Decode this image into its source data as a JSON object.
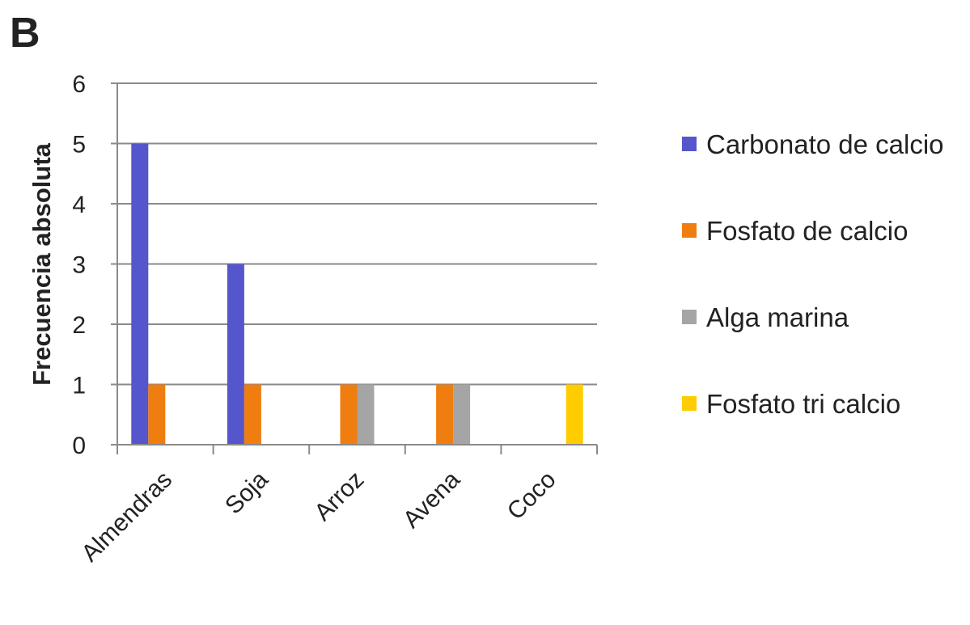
{
  "chart_data": {
    "type": "bar",
    "panel_label": "B",
    "y_label": "Frecuencia absoluta",
    "categories": [
      "Almendras",
      "Soja",
      "Arroz",
      "Avena",
      "Coco"
    ],
    "series": [
      {
        "name": "Carbonato de calcio",
        "color": "#5555cc",
        "values": [
          5,
          3,
          0,
          0,
          0
        ]
      },
      {
        "name": "Fosfato de calcio",
        "color": "#f07d0f",
        "values": [
          1,
          1,
          1,
          1,
          0
        ]
      },
      {
        "name": "Alga marina",
        "color": "#a5a5a5",
        "values": [
          0,
          0,
          1,
          1,
          0
        ]
      },
      {
        "name": "Fosfato tri calcio",
        "color": "#ffcc00",
        "values": [
          0,
          0,
          0,
          0,
          1
        ]
      }
    ],
    "ylim": [
      0,
      6
    ],
    "yticks": [
      0,
      1,
      2,
      3,
      4,
      5,
      6
    ],
    "grid": true,
    "legend": "right"
  }
}
